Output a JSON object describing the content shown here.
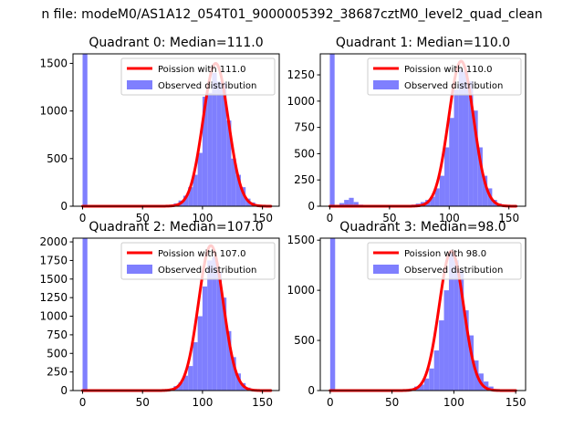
{
  "figure": {
    "suptitle": "n file: modeM0/AS1A12_054T01_9000005392_38687cztM0_level2_quad_clean"
  },
  "colors": {
    "fit_line": "#ff0000",
    "observed": "#7f7ffe",
    "axes": "#000000"
  },
  "chart_data": [
    {
      "type": "bar",
      "title": "Quadrant 0: Median=111.0",
      "xlim": [
        -8,
        164
      ],
      "ylim": [
        0,
        1600
      ],
      "xticks": [
        0,
        50,
        100,
        150
      ],
      "yticks": [
        0,
        500,
        1000,
        1500
      ],
      "bin_width": 4,
      "bins": [
        {
          "x": 0,
          "count": 1600
        },
        {
          "x": 64,
          "count": 5
        },
        {
          "x": 68,
          "count": 10
        },
        {
          "x": 72,
          "count": 15
        },
        {
          "x": 76,
          "count": 30
        },
        {
          "x": 80,
          "count": 60
        },
        {
          "x": 84,
          "count": 110
        },
        {
          "x": 88,
          "count": 200
        },
        {
          "x": 92,
          "count": 330
        },
        {
          "x": 96,
          "count": 560
        },
        {
          "x": 100,
          "count": 1150
        },
        {
          "x": 104,
          "count": 1190
        },
        {
          "x": 108,
          "count": 1400
        },
        {
          "x": 112,
          "count": 1310
        },
        {
          "x": 116,
          "count": 1300
        },
        {
          "x": 120,
          "count": 900
        },
        {
          "x": 124,
          "count": 500
        },
        {
          "x": 128,
          "count": 330
        },
        {
          "x": 132,
          "count": 200
        },
        {
          "x": 136,
          "count": 80
        },
        {
          "x": 140,
          "count": 40
        },
        {
          "x": 144,
          "count": 15
        },
        {
          "x": 148,
          "count": 5
        }
      ],
      "fit": {
        "lambda": 111.0,
        "peak": 1500,
        "x_range": [
          0,
          157
        ]
      },
      "legend": {
        "fit_label": "Poission with 111.0",
        "obs_label": "Observed distribution",
        "position": "top-right"
      }
    },
    {
      "type": "bar",
      "title": "Quadrant 1: Median=110.0",
      "xlim": [
        -8,
        164
      ],
      "ylim": [
        0,
        1450
      ],
      "xticks": [
        0,
        50,
        100,
        150
      ],
      "yticks": [
        0,
        250,
        500,
        750,
        1000,
        1250
      ],
      "bin_width": 4,
      "bins": [
        {
          "x": 0,
          "count": 1450
        },
        {
          "x": 4,
          "count": 10
        },
        {
          "x": 8,
          "count": 30
        },
        {
          "x": 12,
          "count": 60
        },
        {
          "x": 16,
          "count": 80
        },
        {
          "x": 20,
          "count": 40
        },
        {
          "x": 24,
          "count": 15
        },
        {
          "x": 28,
          "count": 5
        },
        {
          "x": 60,
          "count": 5
        },
        {
          "x": 64,
          "count": 10
        },
        {
          "x": 68,
          "count": 15
        },
        {
          "x": 72,
          "count": 25
        },
        {
          "x": 76,
          "count": 40
        },
        {
          "x": 80,
          "count": 60
        },
        {
          "x": 84,
          "count": 90
        },
        {
          "x": 88,
          "count": 170
        },
        {
          "x": 92,
          "count": 290
        },
        {
          "x": 96,
          "count": 560
        },
        {
          "x": 100,
          "count": 840
        },
        {
          "x": 104,
          "count": 1110
        },
        {
          "x": 108,
          "count": 1300
        },
        {
          "x": 112,
          "count": 1280
        },
        {
          "x": 116,
          "count": 1190
        },
        {
          "x": 120,
          "count": 910
        },
        {
          "x": 124,
          "count": 560
        },
        {
          "x": 128,
          "count": 290
        },
        {
          "x": 132,
          "count": 170
        },
        {
          "x": 136,
          "count": 60
        },
        {
          "x": 140,
          "count": 25
        },
        {
          "x": 144,
          "count": 8
        }
      ],
      "fit": {
        "lambda": 110.0,
        "peak": 1380,
        "x_range": [
          0,
          156
        ]
      },
      "legend": {
        "fit_label": "Poission with 110.0",
        "obs_label": "Observed distribution",
        "position": "top-right"
      }
    },
    {
      "type": "bar",
      "title": "Quadrant 2: Median=107.0",
      "xlim": [
        -8,
        164
      ],
      "ylim": [
        0,
        2050
      ],
      "xticks": [
        0,
        50,
        100,
        150
      ],
      "yticks": [
        0,
        250,
        500,
        750,
        1000,
        1250,
        1500,
        1750,
        2000
      ],
      "bin_width": 4,
      "bins": [
        {
          "x": 0,
          "count": 2050
        },
        {
          "x": 68,
          "count": 10
        },
        {
          "x": 72,
          "count": 25
        },
        {
          "x": 76,
          "count": 60
        },
        {
          "x": 80,
          "count": 110
        },
        {
          "x": 84,
          "count": 200
        },
        {
          "x": 88,
          "count": 330
        },
        {
          "x": 92,
          "count": 650
        },
        {
          "x": 96,
          "count": 1000
        },
        {
          "x": 100,
          "count": 1400
        },
        {
          "x": 104,
          "count": 1750
        },
        {
          "x": 108,
          "count": 1800
        },
        {
          "x": 112,
          "count": 1600
        },
        {
          "x": 116,
          "count": 1250
        },
        {
          "x": 120,
          "count": 800
        },
        {
          "x": 124,
          "count": 450
        },
        {
          "x": 128,
          "count": 230
        },
        {
          "x": 132,
          "count": 100
        },
        {
          "x": 136,
          "count": 40
        },
        {
          "x": 140,
          "count": 15
        }
      ],
      "fit": {
        "lambda": 107.0,
        "peak": 1950,
        "x_range": [
          0,
          157
        ]
      },
      "legend": {
        "fit_label": "Poission with 107.0",
        "obs_label": "Observed distribution",
        "position": "top-right"
      }
    },
    {
      "type": "bar",
      "title": "Quadrant 3: Median=98.0",
      "xlim": [
        -8,
        158
      ],
      "ylim": [
        0,
        1520
      ],
      "xticks": [
        0,
        50,
        100,
        150
      ],
      "yticks": [
        0,
        500,
        1000,
        1500
      ],
      "bin_width": 4,
      "bins": [
        {
          "x": 0,
          "count": 1520
        },
        {
          "x": 16,
          "count": 8
        },
        {
          "x": 20,
          "count": 4
        },
        {
          "x": 56,
          "count": 5
        },
        {
          "x": 60,
          "count": 10
        },
        {
          "x": 64,
          "count": 20
        },
        {
          "x": 68,
          "count": 40
        },
        {
          "x": 72,
          "count": 60
        },
        {
          "x": 76,
          "count": 120
        },
        {
          "x": 80,
          "count": 220
        },
        {
          "x": 84,
          "count": 400
        },
        {
          "x": 88,
          "count": 700
        },
        {
          "x": 92,
          "count": 1000
        },
        {
          "x": 96,
          "count": 1380
        },
        {
          "x": 100,
          "count": 1300
        },
        {
          "x": 104,
          "count": 1200
        },
        {
          "x": 108,
          "count": 800
        },
        {
          "x": 112,
          "count": 550
        },
        {
          "x": 116,
          "count": 300
        },
        {
          "x": 120,
          "count": 170
        },
        {
          "x": 124,
          "count": 90
        },
        {
          "x": 128,
          "count": 40
        },
        {
          "x": 132,
          "count": 15
        },
        {
          "x": 136,
          "count": 5
        }
      ],
      "fit": {
        "lambda": 98.0,
        "peak": 1390,
        "x_range": [
          0,
          150
        ]
      },
      "legend": {
        "fit_label": "Poission with 98.0",
        "obs_label": "Observed distribution",
        "position": "top-right"
      }
    }
  ]
}
